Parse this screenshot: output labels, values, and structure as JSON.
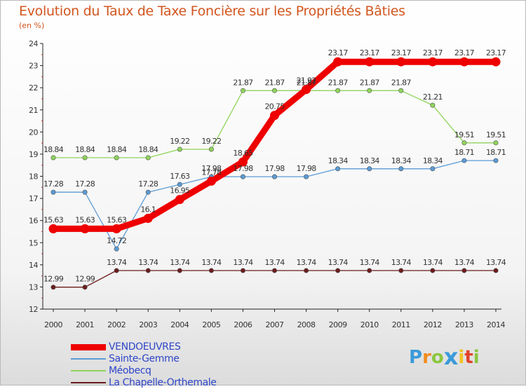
{
  "chart_data": {
    "type": "line",
    "title": "Evolution du Taux de Taxe Foncière sur les Propriétés Bâties",
    "subtitle": "(en %)",
    "x": [
      "2000",
      "2001",
      "2002",
      "2003",
      "2004",
      "2005",
      "2006",
      "2007",
      "2008",
      "2009",
      "2010",
      "2011",
      "2012",
      "2013",
      "2014"
    ],
    "ylim": [
      12,
      24
    ],
    "yticks": [
      12,
      13,
      14,
      15,
      16,
      17,
      18,
      19,
      20,
      21,
      22,
      23,
      24
    ],
    "grid": false,
    "legend_position": "bottom-left",
    "series": [
      {
        "name": "VENDOEUVRES",
        "color": "#ee0000",
        "values": [
          15.63,
          15.63,
          15.63,
          16.1,
          16.95,
          17.78,
          18.65,
          20.75,
          21.92,
          23.17,
          23.17,
          23.17,
          23.17,
          23.17,
          23.17
        ],
        "labels": [
          "15.63",
          "15.63",
          "15.63",
          "16.1",
          "16.95",
          "17.78",
          "18.65",
          "20.75",
          "21.92",
          "23.17",
          "23.17",
          "23.17",
          "23.17",
          "23.17",
          "23.17"
        ]
      },
      {
        "name": "Sainte-Gemme",
        "color": "#5b9bd5",
        "values": [
          17.28,
          17.28,
          14.72,
          17.28,
          17.63,
          17.98,
          17.98,
          17.98,
          17.98,
          18.34,
          18.34,
          18.34,
          18.34,
          18.71,
          18.71
        ],
        "labels": [
          "17.28",
          "17.28",
          "14.72",
          "17.28",
          "17.63",
          "17.98",
          "17.98",
          "17.98",
          "17.98",
          "18.34",
          "18.34",
          "18.34",
          "18.34",
          "18.71",
          "18.71"
        ]
      },
      {
        "name": "Méobecq",
        "color": "#8fd45a",
        "values": [
          18.84,
          18.84,
          18.84,
          18.84,
          19.22,
          19.22,
          21.87,
          21.87,
          21.87,
          21.87,
          21.87,
          21.87,
          21.21,
          19.51,
          19.51
        ],
        "labels": [
          "18.84",
          "18.84",
          "18.84",
          "18.84",
          "19.22",
          "19.22",
          "21.87",
          "21.87",
          "21.87",
          "21.87",
          "21.87",
          "21.87",
          "21.21",
          "19.51",
          "19.51"
        ]
      },
      {
        "name": "La Chapelle-Orthemale",
        "color": "#6b1c1c",
        "values": [
          12.99,
          12.99,
          13.74,
          13.74,
          13.74,
          13.74,
          13.74,
          13.74,
          13.74,
          13.74,
          13.74,
          13.74,
          13.74,
          13.74,
          13.74
        ],
        "labels": [
          "12.99",
          "12.99",
          "13.74",
          "13.74",
          "13.74",
          "13.74",
          "13.74",
          "13.74",
          "13.74",
          "13.74",
          "13.74",
          "13.74",
          "13.74",
          "13.74",
          "13.74"
        ]
      }
    ]
  },
  "brand": {
    "letters": [
      "P",
      "r",
      "o",
      "x",
      "i",
      "t",
      "i"
    ],
    "colors": [
      "#3a9ad9",
      "#f28c1e",
      "#8cc63f",
      "#3a9ad9",
      "#f2c21e",
      "#e0432b",
      "#8cc63f"
    ]
  }
}
